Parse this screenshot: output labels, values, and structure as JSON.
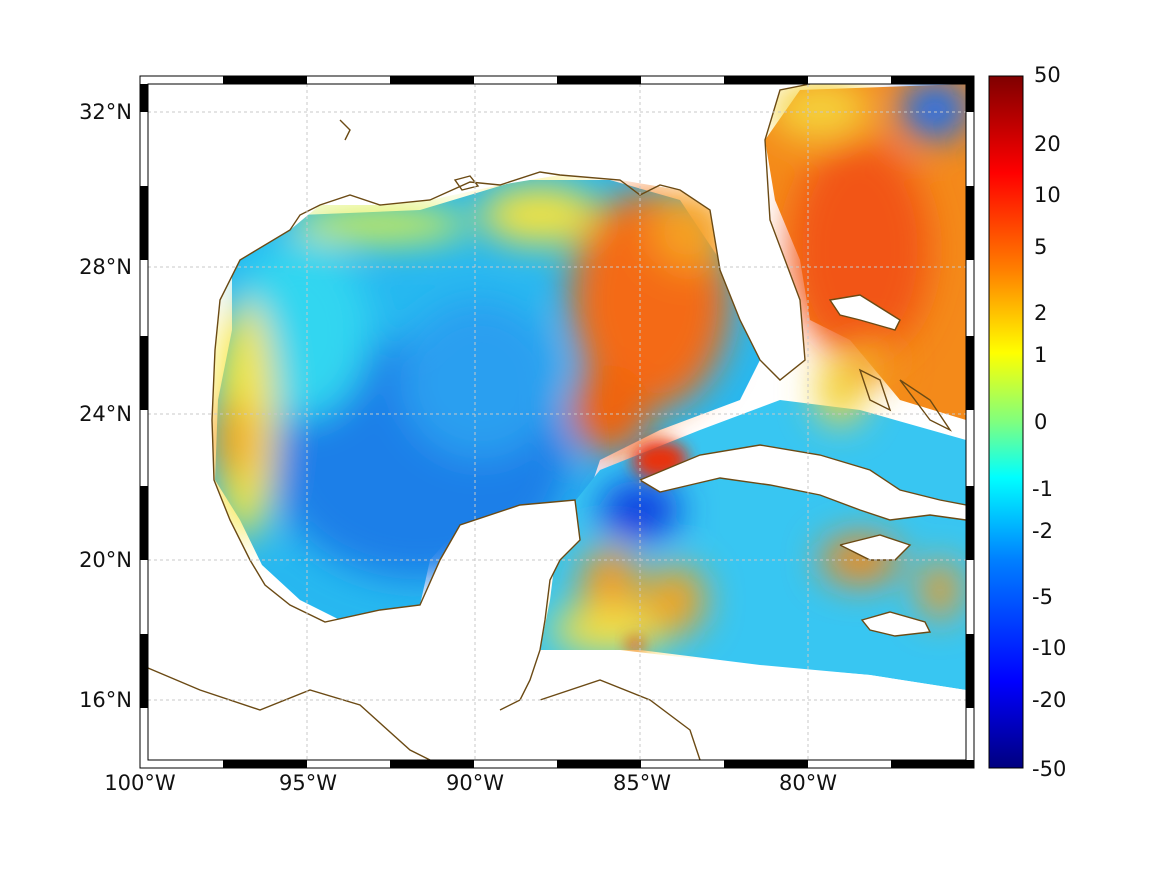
{
  "map": {
    "lat_labels": [
      "32°N",
      "28°N",
      "24°N",
      "20°N",
      "16°N"
    ],
    "lon_labels": [
      "100°W",
      "95°W",
      "90°W",
      "85°W",
      "80°W"
    ],
    "extent": {
      "lon_min": -100,
      "lon_max": -75,
      "lat_min": 14.5,
      "lat_max": 33
    },
    "colors": {
      "coastline": "#6b4a14",
      "grid": "#c8c8c8",
      "frame_dark": "#000000",
      "frame_light": "#ffffff"
    }
  },
  "colorbar": {
    "tick_labels": [
      "50",
      "20",
      "10",
      "5",
      "2",
      "1",
      "0",
      "-1",
      "-2",
      "-5",
      "-10",
      "-20",
      "-50"
    ],
    "colormap": [
      "#00007f",
      "#0000ff",
      "#007fff",
      "#00ffff",
      "#7fff7f",
      "#ffff00",
      "#ff7f00",
      "#ff0000",
      "#7f0000"
    ]
  }
}
